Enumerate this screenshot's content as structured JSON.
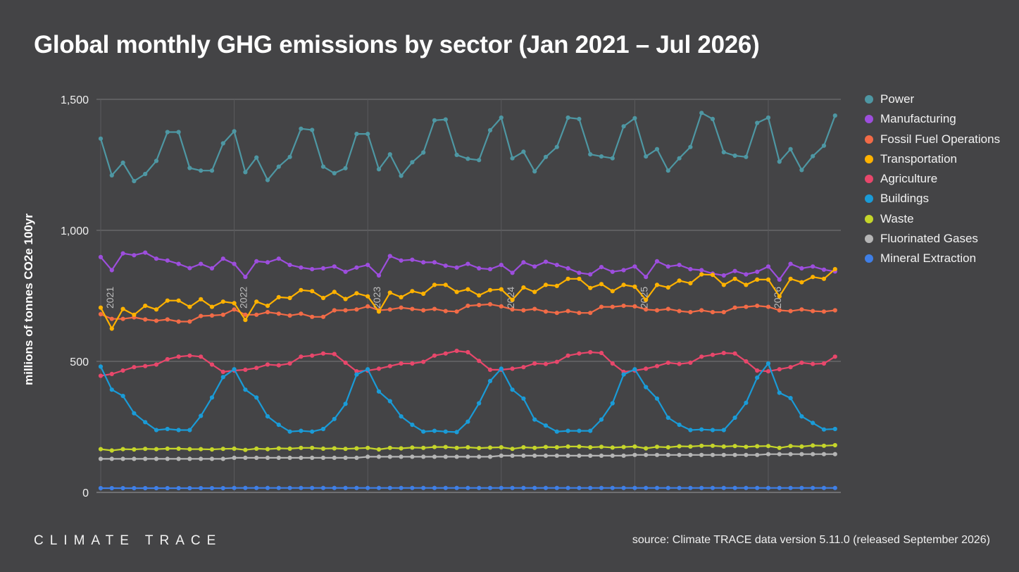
{
  "title": "Global monthly GHG emissions by sector (Jan 2021 – Jul 2026)",
  "logo_text": "CLIMATE TRACE",
  "source": "source: Climate TRACE data version 5.11.0 (released September 2026)",
  "chart_data": {
    "type": "line",
    "ylabel": "millions of tonnes CO2e 100yr",
    "ylim": [
      0,
      1500
    ],
    "yticks": [
      0,
      500,
      1000,
      1500
    ],
    "ytick_labels": [
      "0",
      "500",
      "1,000",
      "1,500"
    ],
    "x_start": "2021-01",
    "x_end": "2026-07",
    "year_markers": [
      "2021",
      "2022",
      "2023",
      "2024",
      "2025",
      "2026"
    ],
    "grid": true,
    "legend_position": "right",
    "series": [
      {
        "name": "Power",
        "color": "#4e97a3",
        "values": [
          1350,
          1210,
          1258,
          1188,
          1215,
          1265,
          1375,
          1375,
          1238,
          1228,
          1228,
          1332,
          1378,
          1222,
          1278,
          1192,
          1243,
          1280,
          1388,
          1383,
          1243,
          1218,
          1237,
          1368,
          1368,
          1233,
          1290,
          1208,
          1260,
          1297,
          1420,
          1423,
          1288,
          1273,
          1268,
          1382,
          1430,
          1275,
          1300,
          1225,
          1280,
          1318,
          1430,
          1425,
          1290,
          1282,
          1275,
          1397,
          1428,
          1282,
          1310,
          1228,
          1275,
          1318,
          1448,
          1425,
          1298,
          1285,
          1280,
          1410,
          1430,
          1262,
          1310,
          1230,
          1283,
          1323,
          1438
        ]
      },
      {
        "name": "Manufacturing",
        "color": "#9d4edd",
        "values": [
          898,
          848,
          912,
          905,
          915,
          892,
          885,
          872,
          856,
          872,
          855,
          892,
          872,
          822,
          882,
          878,
          892,
          868,
          858,
          852,
          855,
          862,
          842,
          858,
          868,
          828,
          902,
          885,
          888,
          878,
          878,
          865,
          858,
          872,
          855,
          852,
          868,
          838,
          878,
          862,
          880,
          868,
          855,
          838,
          832,
          860,
          842,
          848,
          862,
          822,
          882,
          862,
          868,
          852,
          848,
          835,
          828,
          845,
          832,
          842,
          862,
          812,
          872,
          855,
          862,
          850,
          843
        ]
      },
      {
        "name": "Fossil Fuel Operations",
        "color": "#f26b47",
        "values": [
          680,
          662,
          662,
          668,
          660,
          655,
          660,
          652,
          652,
          673,
          675,
          678,
          698,
          678,
          678,
          688,
          682,
          675,
          682,
          670,
          670,
          695,
          695,
          698,
          710,
          695,
          698,
          705,
          700,
          695,
          700,
          692,
          690,
          712,
          715,
          718,
          710,
          698,
          695,
          700,
          690,
          685,
          692,
          685,
          685,
          708,
          708,
          712,
          710,
          698,
          695,
          700,
          692,
          688,
          695,
          688,
          688,
          705,
          708,
          712,
          708,
          695,
          692,
          698,
          692,
          690,
          695
        ]
      },
      {
        "name": "Transportation",
        "color": "#ffb200",
        "values": [
          705,
          625,
          700,
          678,
          712,
          698,
          732,
          732,
          708,
          737,
          708,
          728,
          722,
          658,
          728,
          712,
          745,
          742,
          772,
          768,
          742,
          765,
          738,
          760,
          748,
          690,
          762,
          745,
          768,
          758,
          792,
          792,
          765,
          775,
          752,
          772,
          775,
          735,
          782,
          765,
          792,
          788,
          815,
          815,
          780,
          795,
          768,
          792,
          785,
          735,
          792,
          782,
          808,
          798,
          832,
          830,
          792,
          815,
          792,
          812,
          812,
          748,
          815,
          802,
          822,
          815,
          852
        ]
      },
      {
        "name": "Agriculture",
        "color": "#e8476b",
        "values": [
          445,
          452,
          465,
          478,
          482,
          488,
          508,
          518,
          522,
          518,
          488,
          460,
          465,
          468,
          475,
          488,
          485,
          492,
          518,
          522,
          530,
          528,
          495,
          462,
          465,
          472,
          482,
          492,
          492,
          498,
          522,
          530,
          540,
          535,
          502,
          468,
          468,
          472,
          478,
          492,
          490,
          498,
          522,
          530,
          535,
          532,
          492,
          460,
          465,
          472,
          482,
          495,
          490,
          495,
          518,
          525,
          532,
          530,
          500,
          465,
          462,
          470,
          478,
          495,
          490,
          492,
          518
        ]
      },
      {
        "name": "Buildings",
        "color": "#1a9bd7",
        "values": [
          480,
          392,
          368,
          302,
          268,
          238,
          242,
          238,
          238,
          292,
          362,
          440,
          470,
          392,
          362,
          290,
          258,
          232,
          235,
          232,
          242,
          280,
          338,
          450,
          470,
          385,
          348,
          290,
          258,
          232,
          235,
          232,
          230,
          270,
          340,
          425,
          472,
          392,
          358,
          278,
          255,
          232,
          235,
          235,
          235,
          278,
          340,
          450,
          470,
          402,
          358,
          285,
          258,
          238,
          240,
          238,
          238,
          285,
          342,
          438,
          492,
          380,
          360,
          290,
          265,
          240,
          242
        ]
      },
      {
        "name": "Waste",
        "color": "#c5d52a",
        "values": [
          165,
          160,
          165,
          164,
          166,
          165,
          167,
          167,
          165,
          165,
          164,
          166,
          167,
          162,
          167,
          165,
          168,
          167,
          170,
          170,
          167,
          168,
          166,
          168,
          170,
          164,
          170,
          168,
          171,
          170,
          173,
          173,
          170,
          172,
          169,
          171,
          172,
          166,
          172,
          170,
          173,
          172,
          175,
          175,
          172,
          174,
          171,
          173,
          175,
          168,
          174,
          172,
          176,
          175,
          178,
          178,
          175,
          177,
          174,
          176,
          177,
          170,
          177,
          175,
          179,
          178,
          180
        ]
      },
      {
        "name": "Fluorinated Gases",
        "color": "#b5b5b5",
        "values": [
          128,
          128,
          128,
          128,
          128,
          128,
          128,
          128,
          128,
          128,
          128,
          128,
          132,
          132,
          132,
          132,
          132,
          132,
          132,
          132,
          132,
          132,
          132,
          132,
          136,
          136,
          136,
          136,
          136,
          136,
          136,
          136,
          136,
          136,
          136,
          136,
          140,
          140,
          140,
          140,
          140,
          140,
          140,
          140,
          140,
          140,
          140,
          140,
          143,
          143,
          143,
          143,
          143,
          143,
          143,
          143,
          143,
          143,
          143,
          143,
          146,
          146,
          146,
          146,
          146,
          146,
          146
        ]
      },
      {
        "name": "Mineral Extraction",
        "color": "#3f7fe6",
        "values": [
          16,
          16,
          16,
          16,
          16,
          16,
          16,
          16,
          16,
          16,
          16,
          16,
          17,
          17,
          17,
          17,
          17,
          17,
          17,
          17,
          17,
          17,
          17,
          17,
          17,
          17,
          17,
          17,
          17,
          17,
          17,
          17,
          17,
          17,
          17,
          17,
          17,
          17,
          17,
          17,
          17,
          17,
          17,
          17,
          17,
          17,
          17,
          17,
          17,
          17,
          17,
          17,
          17,
          17,
          17,
          17,
          17,
          17,
          17,
          17,
          17,
          17,
          17,
          17,
          17,
          17,
          17
        ]
      }
    ]
  }
}
